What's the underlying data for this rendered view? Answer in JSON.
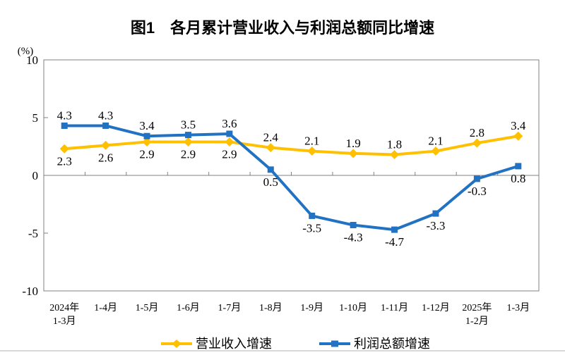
{
  "page": {
    "axis_color": "#808080",
    "divider_color": "#d9d9d9"
  },
  "chart_data": {
    "type": "line",
    "title": "图1　各月累计营业收入与利润总额同比增速",
    "xlabel": "",
    "ylabel": "(%)",
    "ylim": [
      -10,
      10
    ],
    "yticks": [
      10,
      5,
      0,
      -5,
      -10
    ],
    "grid": false,
    "legend_position": "bottom",
    "categories": [
      [
        "2024年",
        "1-3月"
      ],
      [
        "1-4月"
      ],
      [
        "1-5月"
      ],
      [
        "1-6月"
      ],
      [
        "1-7月"
      ],
      [
        "1-8月"
      ],
      [
        "1-9月"
      ],
      [
        "1-10月"
      ],
      [
        "1-11月"
      ],
      [
        "1-12月"
      ],
      [
        "2025年",
        "1-2月"
      ],
      [
        "1-3月"
      ]
    ],
    "series": [
      {
        "name": "营业收入增速",
        "color": "#FFC000",
        "marker": "diamond",
        "values": [
          2.3,
          2.6,
          2.9,
          2.9,
          2.9,
          2.4,
          2.1,
          1.9,
          1.8,
          2.1,
          2.8,
          3.4
        ],
        "label_side": [
          "below",
          "below",
          "below",
          "below",
          "below",
          "above",
          "above",
          "above",
          "above",
          "above",
          "above",
          "above"
        ]
      },
      {
        "name": "利润总额增速",
        "color": "#2272C4",
        "marker": "square",
        "values": [
          4.3,
          4.3,
          3.4,
          3.5,
          3.6,
          0.5,
          -3.5,
          -4.3,
          -4.7,
          -3.3,
          -0.3,
          0.8
        ],
        "label_side": [
          "above",
          "above",
          "above",
          "above",
          "above",
          "below",
          "below",
          "below",
          "below",
          "below",
          "below",
          "below"
        ]
      }
    ]
  }
}
